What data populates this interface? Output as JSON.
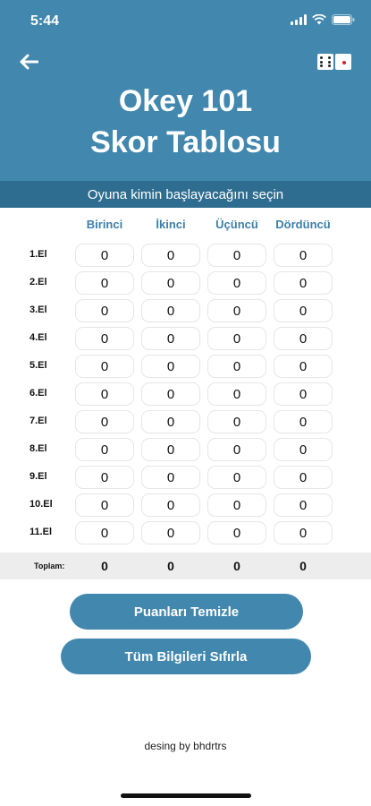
{
  "status_bar": {
    "time": "5:44"
  },
  "header": {
    "title_line1": "Okey 101",
    "title_line2": "Skor Tablosu",
    "subtitle": "Oyuna kimin başlayacağını seçin",
    "back_icon": "arrow-left-icon",
    "dice_icon": "dice-icon"
  },
  "columns": [
    "Birinci",
    "İkinci",
    "Üçüncü",
    "Dördüncü"
  ],
  "rows": [
    {
      "label": "1.El",
      "values": [
        "0",
        "0",
        "0",
        "0"
      ]
    },
    {
      "label": "2.El",
      "values": [
        "0",
        "0",
        "0",
        "0"
      ]
    },
    {
      "label": "3.El",
      "values": [
        "0",
        "0",
        "0",
        "0"
      ]
    },
    {
      "label": "4.El",
      "values": [
        "0",
        "0",
        "0",
        "0"
      ]
    },
    {
      "label": "5.El",
      "values": [
        "0",
        "0",
        "0",
        "0"
      ]
    },
    {
      "label": "6.El",
      "values": [
        "0",
        "0",
        "0",
        "0"
      ]
    },
    {
      "label": "7.El",
      "values": [
        "0",
        "0",
        "0",
        "0"
      ]
    },
    {
      "label": "8.El",
      "values": [
        "0",
        "0",
        "0",
        "0"
      ]
    },
    {
      "label": "9.El",
      "values": [
        "0",
        "0",
        "0",
        "0"
      ]
    },
    {
      "label": "10.El",
      "values": [
        "0",
        "0",
        "0",
        "0"
      ]
    },
    {
      "label": "11.El",
      "values": [
        "0",
        "0",
        "0",
        "0"
      ]
    }
  ],
  "totals": {
    "label": "Toplam:",
    "values": [
      "0",
      "0",
      "0",
      "0"
    ]
  },
  "buttons": {
    "clear_label": "Puanları Temizle",
    "reset_label": "Tüm Bilgileri Sıfırla"
  },
  "footer": {
    "credit": "desing by bhdrtrs"
  },
  "colors": {
    "primary": "#4187ae",
    "subtitle_bar": "#2f6d90",
    "column_header": "#3d7fa8",
    "totals_bg": "#ededed"
  }
}
